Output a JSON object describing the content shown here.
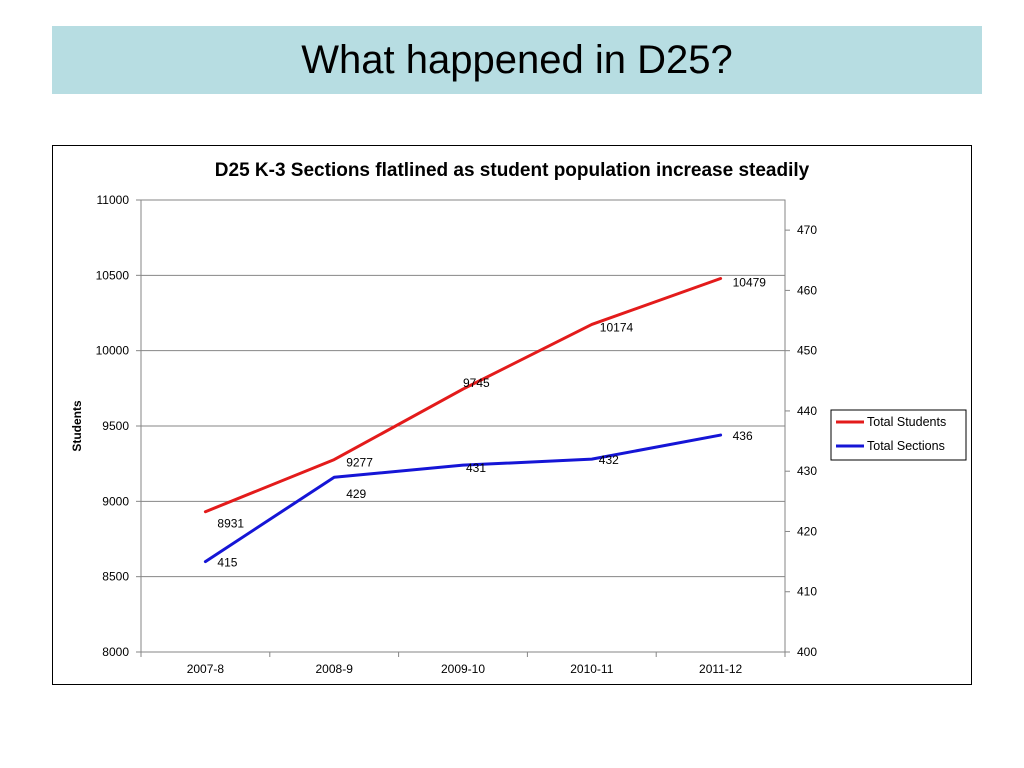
{
  "slide": {
    "title": "What happened in D25?"
  },
  "chart_data": {
    "type": "line",
    "title": "D25 K-3 Sections flatlined as student population increase steadily",
    "categories": [
      "2007-8",
      "2008-9",
      "2009-10",
      "2010-11",
      "2011-12"
    ],
    "y_label": "Students",
    "y_range": [
      8000,
      11000
    ],
    "y_ticks": [
      8000,
      8500,
      9000,
      9500,
      10000,
      10500,
      11000
    ],
    "y2_range": [
      400,
      475
    ],
    "y2_ticks": [
      400,
      410,
      420,
      430,
      440,
      450,
      460,
      470
    ],
    "grid": "horizontal major gridlines on primary axis",
    "legend_position": "right",
    "series": [
      {
        "name": "Total Students",
        "axis": "primary",
        "color": "#e31b1b",
        "values": [
          8931,
          9277,
          9745,
          10174,
          10479
        ],
        "labels": [
          "8931",
          "9277",
          "9745",
          "10174",
          "10479"
        ]
      },
      {
        "name": "Total Sections",
        "axis": "secondary",
        "color": "#1515d6",
        "values": [
          415,
          429,
          431,
          432,
          436
        ],
        "labels": [
          "415",
          "429",
          "431",
          "432",
          "436"
        ]
      }
    ]
  }
}
